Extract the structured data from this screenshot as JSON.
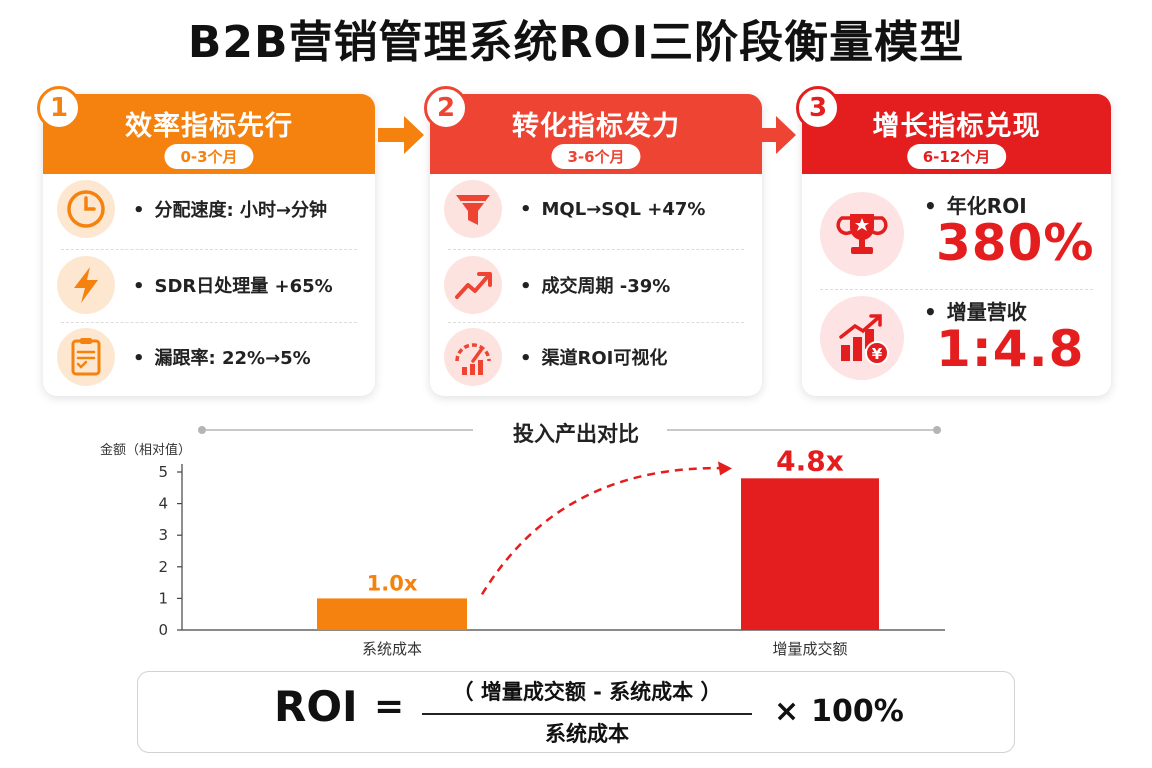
{
  "title": "B2B营销管理系统ROI三阶段衡量模型",
  "stages": [
    {
      "number": "1",
      "title": "效率指标先行",
      "period": "0-3个月",
      "color": "#f5820f",
      "items": [
        {
          "icon": "clock-icon",
          "text": "分配速度: 小时→分钟"
        },
        {
          "icon": "lightning-icon",
          "text": "SDR日处理量 +65%"
        },
        {
          "icon": "checklist-icon",
          "text": "漏跟率: 22%→5%"
        }
      ]
    },
    {
      "number": "2",
      "title": "转化指标发力",
      "period": "3-6个月",
      "color": "#ee4434",
      "items": [
        {
          "icon": "funnel-icon",
          "text": "MQL→SQL +47%"
        },
        {
          "icon": "trend-up-icon",
          "text": "成交周期 -39%"
        },
        {
          "icon": "gauge-icon",
          "text": "渠道ROI可视化"
        }
      ]
    },
    {
      "number": "3",
      "title": "增长指标兑现",
      "period": "6-12个月",
      "color": "#e41e1e",
      "metrics": [
        {
          "icon": "trophy-icon",
          "label": "年化ROI",
          "value": "380%"
        },
        {
          "icon": "growth-bars-icon",
          "label": "增量营收",
          "value": "1:4.8"
        }
      ]
    }
  ],
  "chart_data": {
    "type": "bar",
    "title": "投入产出对比",
    "ylabel": "金额（相对值）",
    "categories": [
      "系统成本",
      "增量成交额"
    ],
    "values": [
      1.0,
      4.8
    ],
    "value_labels": [
      "1.0x",
      "4.8x"
    ],
    "colors": [
      "#f5820f",
      "#e41e1e"
    ],
    "ylim": [
      0,
      5
    ],
    "yticks": [
      "0",
      "1",
      "2",
      "3",
      "4",
      "5"
    ],
    "grid": false
  },
  "formula": {
    "lhs": "ROI",
    "eq": "=",
    "numerator": "（ 增量成交额 - 系统成本 ）",
    "denominator": "系统成本",
    "times": "×",
    "percent": "100%"
  }
}
